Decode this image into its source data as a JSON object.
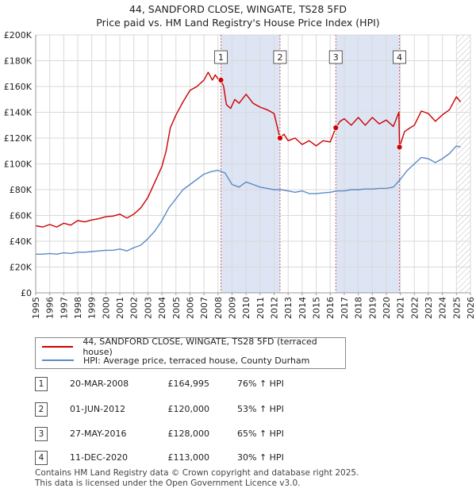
{
  "title_line1": "44, SANDFORD CLOSE, WINGATE, TS28 5FD",
  "title_line2": "Price paid vs. HM Land Registry's House Price Index (HPI)",
  "colors": {
    "property_line": "#cc0000",
    "hpi_line": "#5b8ac6",
    "shade": "#dde4f3",
    "grid": "#d9d9d9",
    "marker_line": "#d06060"
  },
  "chart_data": {
    "type": "line",
    "title": "Price paid vs. HM Land Registry's House Price Index (HPI)",
    "xlabel": "",
    "ylabel": "",
    "xlim": [
      1995,
      2026
    ],
    "ylim": [
      0,
      200000
    ],
    "x_ticks": [
      "1995",
      "1996",
      "1997",
      "1998",
      "1999",
      "2000",
      "2001",
      "2002",
      "2003",
      "2004",
      "2005",
      "2006",
      "2007",
      "2008",
      "2009",
      "2010",
      "2011",
      "2012",
      "2013",
      "2014",
      "2015",
      "2016",
      "2017",
      "2018",
      "2019",
      "2020",
      "2021",
      "2022",
      "2023",
      "2024",
      "2025",
      "2026"
    ],
    "y_ticks": [
      {
        "value": 0,
        "label": "£0"
      },
      {
        "value": 20000,
        "label": "£20K"
      },
      {
        "value": 40000,
        "label": "£40K"
      },
      {
        "value": 60000,
        "label": "£60K"
      },
      {
        "value": 80000,
        "label": "£80K"
      },
      {
        "value": 100000,
        "label": "£100K"
      },
      {
        "value": 120000,
        "label": "£120K"
      },
      {
        "value": 140000,
        "label": "£140K"
      },
      {
        "value": 160000,
        "label": "£160K"
      },
      {
        "value": 180000,
        "label": "£180K"
      },
      {
        "value": 200000,
        "label": "£200K"
      }
    ],
    "shaded_ranges": [
      [
        2008.21,
        2012.42
      ],
      [
        2016.4,
        2020.94
      ]
    ],
    "future_hatch_from": 2025.0,
    "series": [
      {
        "name": "44, SANDFORD CLOSE, WINGATE, TS28 5FD (terraced house)",
        "color": "#cc0000",
        "x": [
          1995.0,
          1995.5,
          1996.0,
          1996.5,
          1997.0,
          1997.5,
          1998.0,
          1998.5,
          1999.0,
          1999.5,
          2000.0,
          2000.5,
          2001.0,
          2001.5,
          2002.0,
          2002.5,
          2003.0,
          2003.5,
          2004.0,
          2004.3,
          2004.6,
          2005.0,
          2005.5,
          2006.0,
          2006.5,
          2007.0,
          2007.3,
          2007.6,
          2007.8,
          2008.0,
          2008.21,
          2008.4,
          2008.6,
          2008.9,
          2009.2,
          2009.5,
          2010.0,
          2010.5,
          2011.0,
          2011.5,
          2012.0,
          2012.42,
          2012.7,
          2013.0,
          2013.5,
          2014.0,
          2014.5,
          2015.0,
          2015.5,
          2016.0,
          2016.4,
          2016.7,
          2017.0,
          2017.5,
          2018.0,
          2018.5,
          2019.0,
          2019.5,
          2020.0,
          2020.5,
          2020.9,
          2020.94,
          2021.3,
          2021.7,
          2022.0,
          2022.5,
          2023.0,
          2023.5,
          2024.0,
          2024.5,
          2025.0,
          2025.3
        ],
        "values": [
          52000,
          51000,
          53000,
          51000,
          54000,
          52500,
          56000,
          55000,
          56500,
          57500,
          59000,
          59500,
          61000,
          58000,
          61000,
          66000,
          74000,
          86000,
          98000,
          110000,
          128000,
          138000,
          148000,
          157000,
          160000,
          165000,
          171000,
          165000,
          169000,
          166000,
          164995,
          160000,
          146000,
          143000,
          150000,
          147000,
          154000,
          147000,
          144000,
          142000,
          139000,
          120000,
          123000,
          118000,
          120000,
          115000,
          118000,
          114000,
          118000,
          117000,
          128000,
          133000,
          135000,
          130000,
          136000,
          130000,
          136000,
          131000,
          134000,
          129000,
          140000,
          113000,
          125000,
          128000,
          130000,
          141000,
          139000,
          133000,
          138000,
          142000,
          152000,
          148000
        ]
      },
      {
        "name": "HPI: Average price, terraced house, County Durham",
        "color": "#5b8ac6",
        "x": [
          1995.0,
          1995.5,
          1996.0,
          1996.5,
          1997.0,
          1997.5,
          1998.0,
          1998.5,
          1999.0,
          1999.5,
          2000.0,
          2000.5,
          2001.0,
          2001.5,
          2002.0,
          2002.5,
          2003.0,
          2003.5,
          2004.0,
          2004.5,
          2005.0,
          2005.5,
          2006.0,
          2006.5,
          2007.0,
          2007.5,
          2008.0,
          2008.5,
          2009.0,
          2009.5,
          2010.0,
          2010.5,
          2011.0,
          2011.5,
          2012.0,
          2012.5,
          2013.0,
          2013.5,
          2014.0,
          2014.5,
          2015.0,
          2015.5,
          2016.0,
          2016.5,
          2017.0,
          2017.5,
          2018.0,
          2018.5,
          2019.0,
          2019.5,
          2020.0,
          2020.5,
          2021.0,
          2021.5,
          2022.0,
          2022.5,
          2023.0,
          2023.5,
          2024.0,
          2024.5,
          2025.0,
          2025.3
        ],
        "values": [
          30000,
          30000,
          30500,
          30000,
          31000,
          30500,
          31500,
          31500,
          32000,
          32500,
          33000,
          33000,
          34000,
          32500,
          35000,
          37000,
          42000,
          48000,
          56000,
          66000,
          73000,
          80000,
          84000,
          88000,
          92000,
          94000,
          95000,
          93000,
          84000,
          82000,
          86000,
          84000,
          82000,
          81000,
          80000,
          80000,
          79000,
          78000,
          79000,
          77000,
          77000,
          77500,
          78000,
          79000,
          79000,
          80000,
          80000,
          80500,
          80500,
          81000,
          81000,
          82000,
          88000,
          95000,
          100000,
          105000,
          104000,
          101000,
          104000,
          108000,
          114000,
          113000
        ]
      }
    ],
    "sales": [
      {
        "num": "1",
        "x": 2008.21,
        "value": 164995
      },
      {
        "num": "2",
        "x": 2012.42,
        "value": 120000
      },
      {
        "num": "3",
        "x": 2016.4,
        "value": 128000
      },
      {
        "num": "4",
        "x": 2020.94,
        "value": 113000
      }
    ]
  },
  "legend": {
    "property": "44, SANDFORD CLOSE, WINGATE, TS28 5FD (terraced house)",
    "hpi": "HPI: Average price, terraced house, County Durham"
  },
  "sales_table": [
    {
      "num": "1",
      "date": "20-MAR-2008",
      "price": "£164,995",
      "hpi": "76% ↑ HPI"
    },
    {
      "num": "2",
      "date": "01-JUN-2012",
      "price": "£120,000",
      "hpi": "53% ↑ HPI"
    },
    {
      "num": "3",
      "date": "27-MAY-2016",
      "price": "£128,000",
      "hpi": "65% ↑ HPI"
    },
    {
      "num": "4",
      "date": "11-DEC-2020",
      "price": "£113,000",
      "hpi": "30% ↑ HPI"
    }
  ],
  "footer_line1": "Contains HM Land Registry data © Crown copyright and database right 2025.",
  "footer_line2": "This data is licensed under the Open Government Licence v3.0."
}
